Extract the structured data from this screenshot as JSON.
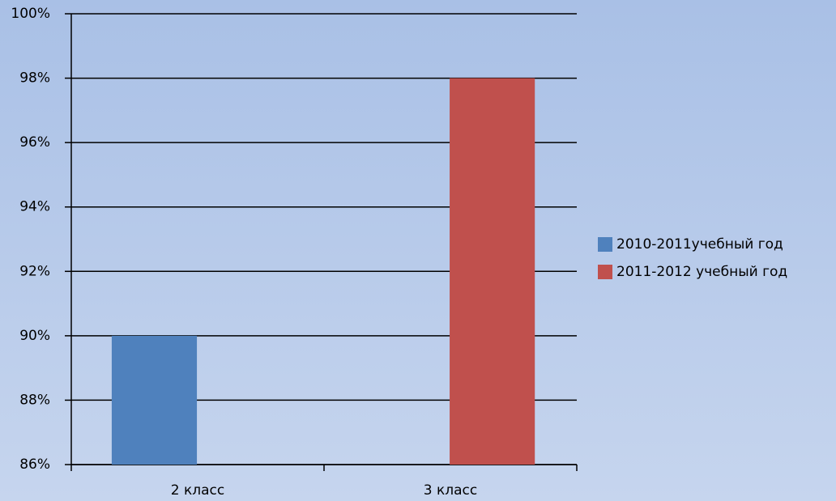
{
  "chart_data": {
    "type": "bar",
    "categories": [
      "2 класс",
      "3 класс"
    ],
    "series": [
      {
        "name": "2010-2011учебный год",
        "color": "#4f81bd",
        "values": [
          90,
          null
        ]
      },
      {
        "name": "2011-2012 учебный год",
        "color": "#c0504d",
        "values": [
          null,
          98
        ]
      }
    ],
    "ylim": [
      86,
      100
    ],
    "yticks": [
      {
        "value": 86,
        "label": "86%"
      },
      {
        "value": 88,
        "label": "88%"
      },
      {
        "value": 90,
        "label": "90%"
      },
      {
        "value": 92,
        "label": "92%"
      },
      {
        "value": 94,
        "label": "94%"
      },
      {
        "value": 96,
        "label": "96%"
      },
      {
        "value": 98,
        "label": "98%"
      },
      {
        "value": 100,
        "label": "100%"
      }
    ],
    "grid": true,
    "legend": "right"
  }
}
